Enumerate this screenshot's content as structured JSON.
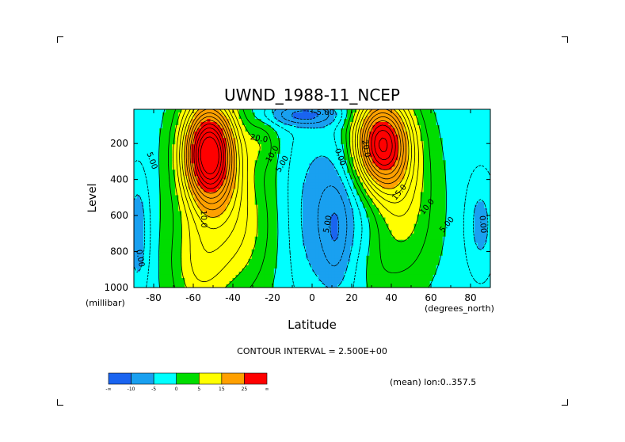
{
  "chart_data": {
    "type": "heatmap",
    "title": "UWND_1988-11_NCEP",
    "xlabel": "Latitude",
    "ylabel": "Level",
    "x_unit": "(degrees_north)",
    "y_unit": "(millibar)",
    "xlim": [
      -90,
      90
    ],
    "ylim": [
      1000,
      10
    ],
    "x_ticks": [
      -80,
      -60,
      -40,
      -20,
      0,
      20,
      40,
      60,
      80
    ],
    "y_ticks": [
      200,
      400,
      600,
      800,
      1000
    ],
    "contour_interval_text": "CONTOUR INTERVAL = 2.500E+00",
    "mean_text": "(mean) lon:0..357.5",
    "levels": [
      -20,
      -15,
      -10,
      -5,
      0,
      5,
      10,
      15,
      20,
      25,
      30
    ],
    "colorbar": {
      "labels": [
        "-∞",
        "-10",
        "-5",
        "0",
        "5",
        "15",
        "25",
        "∞"
      ],
      "colors": [
        "#1a64f0",
        "#19a0f0",
        "#00ffff",
        "#00dd00",
        "#ffff00",
        "#ffa000",
        "#ff0000"
      ]
    },
    "contour_labels": [
      {
        "text": "5.00",
        "x": -82,
        "y": 300,
        "rot": 70
      },
      {
        "text": "10.0",
        "x": -56,
        "y": 620,
        "rot": 88
      },
      {
        "text": "20.0",
        "x": -27,
        "y": 185,
        "rot": 10
      },
      {
        "text": "5.00",
        "x": -14,
        "y": 320,
        "rot": -60
      },
      {
        "text": "10.0",
        "x": -19,
        "y": 265,
        "rot": -60
      },
      {
        "text": "0.00",
        "x": 13,
        "y": 280,
        "rot": 70
      },
      {
        "text": "5.00",
        "x": 9,
        "y": 650,
        "rot": -80
      },
      {
        "text": "-5.00",
        "x": 6,
        "y": 40,
        "rot": 0
      },
      {
        "text": "20.0",
        "x": 26,
        "y": 230,
        "rot": 80
      },
      {
        "text": "15.0",
        "x": 45,
        "y": 480,
        "rot": -50
      },
      {
        "text": "10.0",
        "x": 59,
        "y": 560,
        "rot": -50
      },
      {
        "text": "5.00",
        "x": 69,
        "y": 660,
        "rot": -50
      },
      {
        "text": "0.00",
        "x": 85,
        "y": 650,
        "rot": 85
      },
      {
        "text": "0.00",
        "x": -88,
        "y": 840,
        "rot": 80
      }
    ]
  }
}
